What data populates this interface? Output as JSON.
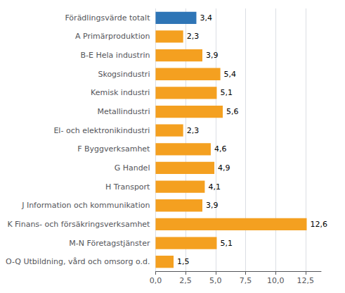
{
  "chart_data": {
    "type": "bar",
    "orientation": "horizontal",
    "categories": [
      "Förädlingsvärde totalt",
      "A Primärproduktion",
      "B-E Hela industrin",
      "Skogsindustri",
      "Kemisk industri",
      "Metallindustri",
      "El- och elektronikindustri",
      "F Byggverksamhet",
      "G Handel",
      "H Transport",
      "J Information och kommunikation",
      "K Finans- och försäkringsverksamhet",
      "M-N Företagstjänster",
      "O-Q Utbildning, vård och omsorg o.d."
    ],
    "values": [
      3.4,
      2.3,
      3.9,
      5.4,
      5.1,
      5.6,
      2.3,
      4.6,
      4.9,
      4.1,
      3.9,
      12.6,
      5.1,
      1.5
    ],
    "value_labels": [
      "3,4",
      "2,3",
      "3,9",
      "5,4",
      "5,1",
      "5,6",
      "2,3",
      "4,6",
      "4,9",
      "4,1",
      "3,9",
      "12,6",
      "5,1",
      "1,5"
    ],
    "colors": [
      "#2e75b6",
      "#f4a020",
      "#f4a020",
      "#f4a020",
      "#f4a020",
      "#f4a020",
      "#f4a020",
      "#f4a020",
      "#f4a020",
      "#f4a020",
      "#f4a020",
      "#f4a020",
      "#f4a020",
      "#f4a020"
    ],
    "xlim": [
      0,
      13.8
    ],
    "xticks": [
      {
        "value": 0.0,
        "label": "0,0"
      },
      {
        "value": 2.5,
        "label": "2,5"
      },
      {
        "value": 5.0,
        "label": "5,0"
      },
      {
        "value": 7.5,
        "label": "7,5"
      },
      {
        "value": 10.0,
        "label": "10,0"
      },
      {
        "value": 12.5,
        "label": "12,5"
      }
    ],
    "grid": true,
    "data_labels": true
  }
}
